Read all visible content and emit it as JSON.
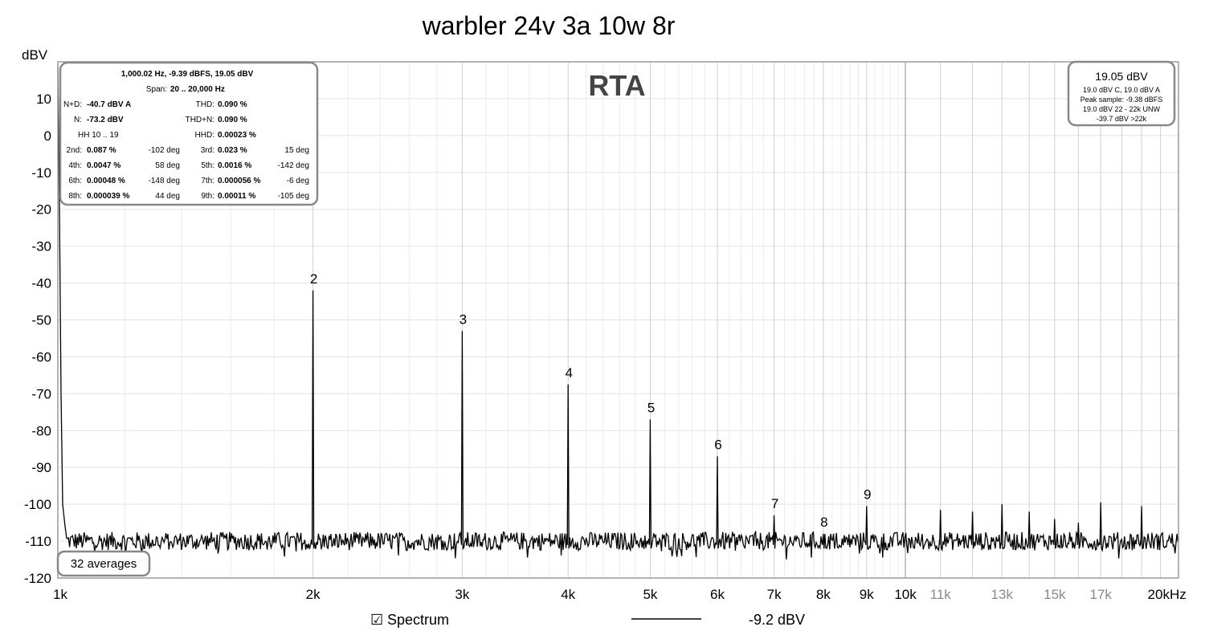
{
  "chart_data": {
    "type": "line",
    "title": "warbler 24v 3a 10w 8r",
    "ylabel": "dBV",
    "watermark": "RTA",
    "xlim": [
      1000,
      21000
    ],
    "ylim": [
      -120,
      20
    ],
    "x_scale": "log",
    "grid": true,
    "yticks": [
      10,
      0,
      -10,
      -20,
      -30,
      -40,
      -50,
      -60,
      -70,
      -80,
      -90,
      -100,
      -110,
      -120
    ],
    "xticks": [
      {
        "v": 1000,
        "label": "1k",
        "major": true
      },
      {
        "v": 2000,
        "label": "2k",
        "major": true
      },
      {
        "v": 3000,
        "label": "3k",
        "major": true
      },
      {
        "v": 4000,
        "label": "4k",
        "major": true
      },
      {
        "v": 5000,
        "label": "5k",
        "major": true
      },
      {
        "v": 6000,
        "label": "6k",
        "major": true
      },
      {
        "v": 7000,
        "label": "7k",
        "major": true
      },
      {
        "v": 8000,
        "label": "8k",
        "major": true
      },
      {
        "v": 9000,
        "label": "9k",
        "major": true
      },
      {
        "v": 10000,
        "label": "10k",
        "major": true
      },
      {
        "v": 11000,
        "label": "11k",
        "major": false
      },
      {
        "v": 13000,
        "label": "13k",
        "major": false
      },
      {
        "v": 15000,
        "label": "15k",
        "major": false
      },
      {
        "v": 17000,
        "label": "17k",
        "major": false
      },
      {
        "v": 20000,
        "label": "20kHz",
        "major": true
      }
    ],
    "noise_floor_dbv": -110,
    "series": [
      {
        "name": "Spectrum",
        "color": "#000000",
        "legend_value": "-9.2 dBV"
      }
    ],
    "fundamental": {
      "x": 1000,
      "y": 19.05
    },
    "harmonics": [
      {
        "label": "2",
        "x": 2000,
        "y": -42
      },
      {
        "label": "3",
        "x": 3000,
        "y": -53
      },
      {
        "label": "4",
        "x": 4000,
        "y": -67.5
      },
      {
        "label": "5",
        "x": 5000,
        "y": -77
      },
      {
        "label": "6",
        "x": 6000,
        "y": -87
      },
      {
        "label": "7",
        "x": 7000,
        "y": -103
      },
      {
        "label": "8",
        "x": 8000,
        "y": -108
      },
      {
        "label": "9",
        "x": 9000,
        "y": -100.5
      }
    ],
    "other_spurs": [
      {
        "x": 11000,
        "y": -101.5
      },
      {
        "x": 12000,
        "y": -102
      },
      {
        "x": 13000,
        "y": -100
      },
      {
        "x": 14000,
        "y": -102
      },
      {
        "x": 15000,
        "y": -104
      },
      {
        "x": 16000,
        "y": -105
      },
      {
        "x": 17000,
        "y": -99.5
      },
      {
        "x": 19000,
        "y": -100.5
      }
    ]
  },
  "stats": {
    "line1": "1,000.02 Hz, -9.39 dBFS, 19.05 dBV",
    "span_label": "Span:",
    "span_value": "20 .. 20,000 Hz",
    "rows": [
      {
        "l1": "N+D:",
        "v1": "-40.7 dBV A",
        "p1": "",
        "l2": "THD:",
        "v2": "0.090 %",
        "p2": ""
      },
      {
        "l1": "N:",
        "v1": "-73.2 dBV",
        "p1": "",
        "l2": "THD+N:",
        "v2": "0.090 %",
        "p2": ""
      },
      {
        "l1": "HH 10 .. 19",
        "v1": "",
        "p1": "",
        "l2": "HHD:",
        "v2": "0.00023 %",
        "p2": ""
      },
      {
        "l1": "2nd:",
        "v1": "0.087 %",
        "p1": "-102 deg",
        "l2": "3rd:",
        "v2": "0.023 %",
        "p2": "15 deg"
      },
      {
        "l1": "4th:",
        "v1": "0.0047 %",
        "p1": "58 deg",
        "l2": "5th:",
        "v2": "0.0016 %",
        "p2": "-142 deg"
      },
      {
        "l1": "6th:",
        "v1": "0.00048 %",
        "p1": "-148 deg",
        "l2": "7th:",
        "v2": "0.000056 %",
        "p2": "-6 deg"
      },
      {
        "l1": "8th:",
        "v1": "0.000039 %",
        "p1": "44 deg",
        "l2": "9th:",
        "v2": "0.00011 %",
        "p2": "-105 deg"
      }
    ]
  },
  "peak_box": {
    "main": "19.05 dBV",
    "lines": [
      "19.0 dBV C, 19.0 dBV A",
      "Peak sample: -9.38 dBFS",
      "19.0 dBV 22 - 22k UNW",
      "-39.7 dBV >22k"
    ]
  },
  "averages_label": "32 averages",
  "legend": {
    "checkbox": "☑",
    "label": "Spectrum",
    "value": "-9.2 dBV"
  }
}
